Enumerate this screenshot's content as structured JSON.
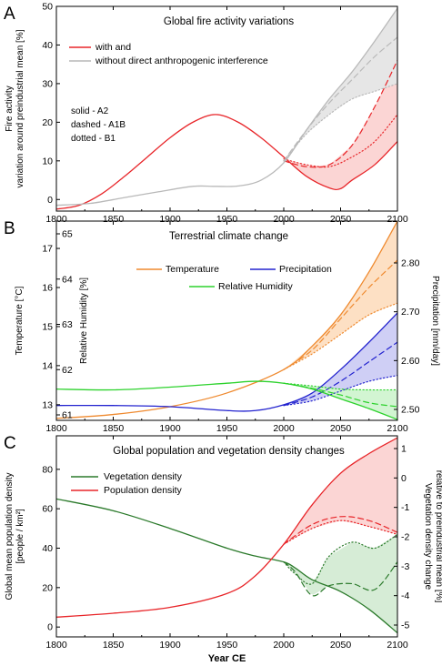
{
  "figure": {
    "xlabel": "Year CE",
    "x_ticks": [
      1800,
      1850,
      1900,
      1950,
      2000,
      2050,
      2100
    ]
  },
  "chart_data": [
    {
      "type": "line",
      "panel_letter": "A",
      "title": "Global fire activity variations",
      "ylabel": "Fire activity",
      "ylabel2": "variation around preindustrial mean [%]",
      "xlim": [
        1800,
        2100
      ],
      "ylim": [
        -3,
        50
      ],
      "y_ticks": [
        0,
        10,
        20,
        30,
        40,
        50
      ],
      "legend": [
        {
          "label": "with and",
          "color": "#e8262a"
        },
        {
          "label": "without direct anthropogenic interference",
          "color": "#b9b9b9"
        }
      ],
      "legend_position": "top-left",
      "notes": [
        "solid - A2",
        "dashed - A1B",
        "dotted - B1"
      ],
      "series": [
        {
          "name": "with and",
          "color": "#e8262a",
          "style": "solid",
          "x": [
            1800,
            1820,
            1840,
            1860,
            1880,
            1900,
            1920,
            1940,
            1960,
            1980,
            2000,
            2020,
            2040,
            2050,
            2060,
            2080,
            2100
          ],
          "y": [
            -2.5,
            -1.5,
            1.5,
            6,
            11,
            16,
            20,
            22,
            20,
            16,
            11,
            6,
            3,
            2.8,
            5,
            9,
            15
          ]
        },
        {
          "name": "with and",
          "color": "#e8262a",
          "style": "dashed",
          "x": [
            2000,
            2020,
            2040,
            2060,
            2080,
            2100
          ],
          "y": [
            10,
            8.5,
            9,
            14,
            24,
            36
          ]
        },
        {
          "name": "with and",
          "color": "#e8262a",
          "style": "dotted",
          "x": [
            2000,
            2020,
            2040,
            2060,
            2080,
            2100
          ],
          "y": [
            10.5,
            9,
            8.5,
            11,
            15,
            22
          ]
        },
        {
          "name": "without direct anthropogenic interference",
          "color": "#b9b9b9",
          "style": "solid",
          "x": [
            1800,
            1830,
            1860,
            1890,
            1920,
            1940,
            1960,
            1980,
            2000,
            2020,
            2040,
            2060,
            2080,
            2100
          ],
          "y": [
            -1.5,
            -1,
            0.5,
            2,
            3.4,
            3.4,
            3.5,
            5,
            9.5,
            18,
            26,
            33,
            41,
            49.5
          ]
        },
        {
          "name": "without direct anthropogenic interference",
          "color": "#b9b9b9",
          "style": "dashed",
          "x": [
            2000,
            2020,
            2040,
            2060,
            2080,
            2100
          ],
          "y": [
            10,
            18,
            25,
            31,
            37,
            42
          ]
        },
        {
          "name": "without direct anthropogenic interference",
          "color": "#b9b9b9",
          "style": "dotted",
          "x": [
            2000,
            2020,
            2040,
            2060,
            2080,
            2100
          ],
          "y": [
            10,
            17,
            22,
            26,
            28,
            30
          ]
        }
      ]
    },
    {
      "type": "line",
      "panel_letter": "B",
      "title": "Terrestrial climate change",
      "ylabel": "Temperature [°C]",
      "ylabel_inner": "Relative Humidity [%]",
      "ylabel_right": "Precipitation [mm/day]",
      "xlim": [
        1800,
        2100
      ],
      "ylim": [
        12.6,
        17.7
      ],
      "y_ticks": [
        13,
        14,
        15,
        16,
        17
      ],
      "inner_ticks": [
        61,
        62,
        63,
        64,
        65
      ],
      "right_ticks": [
        2.5,
        2.6,
        2.7,
        2.8
      ],
      "right_tick_labels": [
        "2.50",
        "2.60",
        "2.70",
        "2.80"
      ],
      "legend": [
        {
          "label": "Temperature",
          "color": "#ef8a2f"
        },
        {
          "label": "Precipitation",
          "color": "#2323cf"
        },
        {
          "label": "Relative Humidity",
          "color": "#2dd22d"
        }
      ],
      "legend_position": "top-center",
      "series": [
        {
          "name": "Temperature",
          "color": "#ef8a2f",
          "style": "solid",
          "x": [
            1800,
            1850,
            1900,
            1950,
            2000,
            2025,
            2050,
            2075,
            2100
          ],
          "y": [
            12.65,
            12.75,
            12.95,
            13.3,
            13.9,
            14.5,
            15.3,
            16.4,
            17.7
          ]
        },
        {
          "name": "Temperature",
          "color": "#ef8a2f",
          "style": "dashed",
          "x": [
            2000,
            2025,
            2050,
            2075,
            2100
          ],
          "y": [
            13.9,
            14.4,
            15.2,
            16.0,
            16.7
          ]
        },
        {
          "name": "Temperature",
          "color": "#ef8a2f",
          "style": "dotted",
          "x": [
            2000,
            2025,
            2050,
            2075,
            2100
          ],
          "y": [
            13.9,
            14.3,
            14.8,
            15.3,
            15.6
          ]
        },
        {
          "name": "Precipitation",
          "color": "#2323cf",
          "style": "solid",
          "x": [
            1800,
            1850,
            1900,
            1950,
            1975,
            2000,
            2025,
            2050,
            2075,
            2100
          ],
          "y": [
            12.98,
            12.98,
            12.95,
            12.85,
            12.85,
            13.0,
            13.3,
            13.9,
            14.6,
            15.35
          ]
        },
        {
          "name": "Precipitation",
          "color": "#2323cf",
          "style": "dashed",
          "x": [
            2000,
            2025,
            2050,
            2075,
            2100
          ],
          "y": [
            12.98,
            13.2,
            13.6,
            14.1,
            14.6
          ]
        },
        {
          "name": "Precipitation",
          "color": "#2323cf",
          "style": "dotted",
          "x": [
            2000,
            2025,
            2050,
            2075,
            2100
          ],
          "y": [
            12.98,
            13.1,
            13.35,
            13.6,
            13.75
          ]
        },
        {
          "name": "Relative Humidity",
          "color": "#2dd22d",
          "style": "solid",
          "x": [
            1800,
            1850,
            1900,
            1950,
            1975,
            2000,
            2025,
            2050,
            2075,
            2100
          ],
          "y": [
            13.4,
            13.38,
            13.45,
            13.55,
            13.6,
            13.55,
            13.4,
            13.15,
            12.9,
            12.62
          ]
        },
        {
          "name": "Relative Humidity",
          "color": "#2dd22d",
          "style": "dashed",
          "x": [
            2000,
            2025,
            2050,
            2075,
            2100
          ],
          "y": [
            13.55,
            13.42,
            13.25,
            13.05,
            12.95
          ]
        },
        {
          "name": "Relative Humidity",
          "color": "#2dd22d",
          "style": "dotted",
          "x": [
            2000,
            2025,
            2050,
            2075,
            2100
          ],
          "y": [
            13.55,
            13.48,
            13.4,
            13.38,
            13.38
          ]
        }
      ]
    },
    {
      "type": "line",
      "panel_letter": "C",
      "title": "Global population and vegetation density changes",
      "ylabel": "Global mean population density",
      "ylabel2": "[people / km²]",
      "ylabel_right": "Vegetation density change",
      "ylabel_right2": "relative to preindustrial mean [%]",
      "xlim": [
        1800,
        2100
      ],
      "ylim": [
        -5,
        97
      ],
      "y_ticks": [
        0,
        20,
        40,
        60,
        80
      ],
      "right_ticks": [
        1,
        0,
        -1,
        -2,
        -3,
        -4,
        -5
      ],
      "legend": [
        {
          "label": "Vegetation density",
          "color": "#2b7a2b"
        },
        {
          "label": "Population density",
          "color": "#e8262a"
        }
      ],
      "legend_position": "top-left",
      "series": [
        {
          "name": "Vegetation density",
          "color": "#2b7a2b",
          "style": "solid",
          "x": [
            1800,
            1850,
            1900,
            1950,
            1975,
            2000,
            2010,
            2025,
            2050,
            2075,
            2100
          ],
          "y": [
            65,
            59,
            50,
            40,
            36,
            33,
            30,
            24,
            18,
            9,
            -3
          ]
        },
        {
          "name": "Vegetation density",
          "color": "#2b7a2b",
          "style": "dashed",
          "x": [
            2000,
            2010,
            2025,
            2040,
            2060,
            2080,
            2100
          ],
          "y": [
            33,
            28,
            16,
            21,
            22,
            19,
            33
          ]
        },
        {
          "name": "Vegetation density",
          "color": "#2b7a2b",
          "style": "dotted",
          "x": [
            2000,
            2010,
            2025,
            2040,
            2060,
            2080,
            2100
          ],
          "y": [
            33,
            27,
            22,
            36,
            43,
            40,
            47
          ]
        },
        {
          "name": "Population density",
          "color": "#e8262a",
          "style": "solid",
          "x": [
            1800,
            1850,
            1900,
            1950,
            1975,
            2000,
            2025,
            2050,
            2075,
            2100
          ],
          "y": [
            5,
            7,
            10,
            17,
            26,
            42,
            62,
            78,
            88,
            96
          ]
        },
        {
          "name": "Population density",
          "color": "#e8262a",
          "style": "dashed",
          "x": [
            2000,
            2025,
            2050,
            2075,
            2100
          ],
          "y": [
            42,
            52,
            56,
            54,
            48
          ]
        },
        {
          "name": "Population density",
          "color": "#e8262a",
          "style": "dotted",
          "x": [
            2000,
            2025,
            2050,
            2075,
            2100
          ],
          "y": [
            42,
            50,
            54,
            51,
            47
          ]
        }
      ]
    }
  ]
}
